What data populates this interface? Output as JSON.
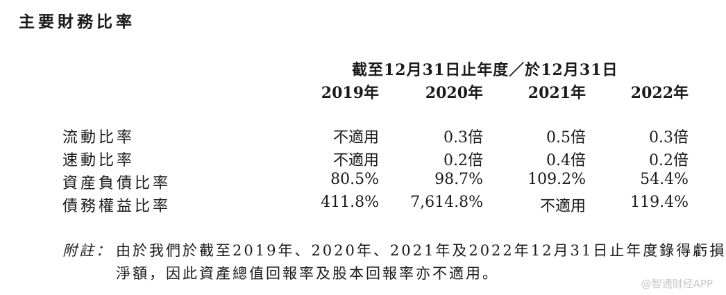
{
  "title": "主要財務比率",
  "period_header": "截至12月31日止年度／於12月31日",
  "years": [
    "2019年",
    "2020年",
    "2021年",
    "2022年"
  ],
  "rows": [
    {
      "label": "流動比率",
      "values": [
        "不適用",
        "0.3倍",
        "0.5倍",
        "0.3倍"
      ]
    },
    {
      "label": "速動比率",
      "values": [
        "不適用",
        "0.2倍",
        "0.4倍",
        "0.2倍"
      ]
    },
    {
      "label": "資産負債比率",
      "values": [
        "80.5%",
        "98.7%",
        "109.2%",
        "54.4%"
      ]
    },
    {
      "label": "債務權益比率",
      "values": [
        "411.8%",
        "7,614.8%",
        "不適用",
        "119.4%"
      ]
    }
  ],
  "note": {
    "label": "附註：",
    "line1": "由於我們於截至2019年、2020年、2021年及2022年12月31日止年度錄得虧損",
    "line2": "淨額，因此資產總值回報率及股本回報率亦不適用。"
  },
  "watermark": "@智通财经APP"
}
